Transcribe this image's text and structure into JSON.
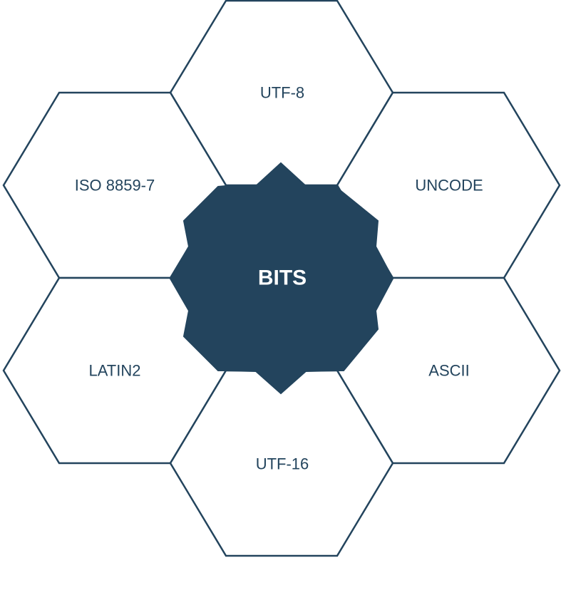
{
  "colors": {
    "primary": "#23445d",
    "background": "#ffffff",
    "center_text": "#ffffff"
  },
  "center": {
    "label": "BITS"
  },
  "hexagons": [
    {
      "label": "UTF-8"
    },
    {
      "label": "ISO 8859-7"
    },
    {
      "label": "UNCODE"
    },
    {
      "label": "LATIN2"
    },
    {
      "label": "ASCII"
    },
    {
      "label": "UTF-16"
    }
  ]
}
